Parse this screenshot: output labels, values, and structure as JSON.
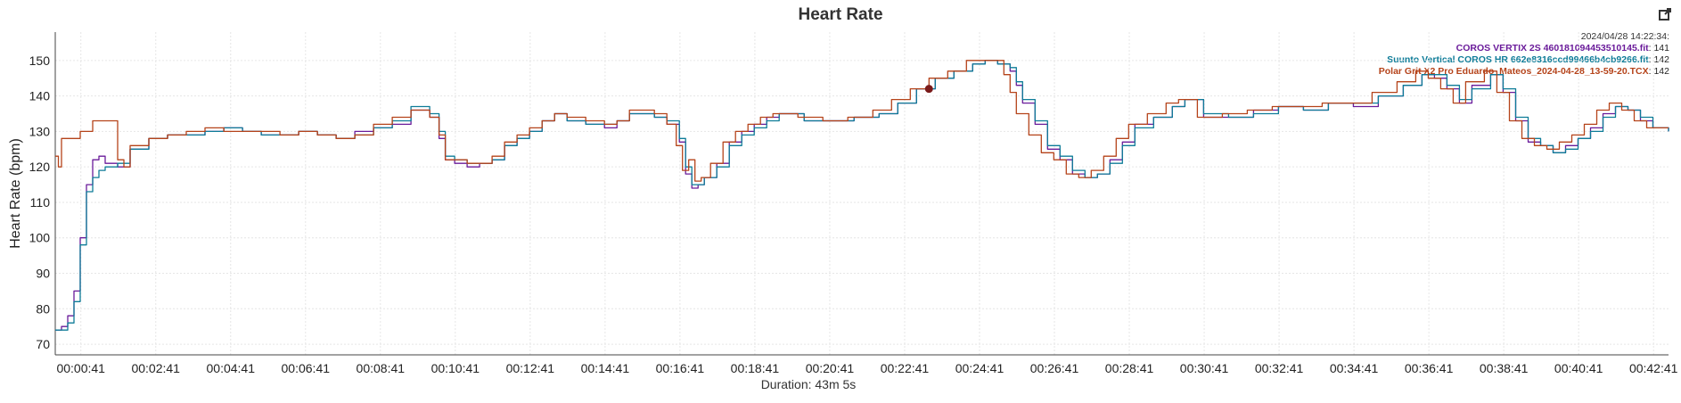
{
  "header": {
    "title": "Heart Rate",
    "export_icon": "external-link-icon"
  },
  "chart_data": {
    "type": "line",
    "title": "Heart Rate",
    "xlabel": "Duration: 43m 5s",
    "ylabel": "Heart Rate (bpm)",
    "xlim": [
      0,
      2585
    ],
    "ylim": [
      67,
      158
    ],
    "grid": true,
    "x_tick_labels": [
      "00:00:41",
      "00:02:41",
      "00:04:41",
      "00:06:41",
      "00:08:41",
      "00:10:41",
      "00:12:41",
      "00:14:41",
      "00:16:41",
      "00:18:41",
      "00:20:41",
      "00:22:41",
      "00:24:41",
      "00:26:41",
      "00:28:41",
      "00:30:41",
      "00:32:41",
      "00:34:41",
      "00:36:41",
      "00:38:41",
      "00:40:41",
      "00:42:41"
    ],
    "x_tick_values": [
      41,
      161,
      281,
      401,
      521,
      641,
      761,
      881,
      1001,
      1121,
      1241,
      1361,
      1481,
      1601,
      1721,
      1841,
      1961,
      2081,
      2201,
      2321,
      2441,
      2561
    ],
    "y_ticks": [
      70,
      80,
      90,
      100,
      110,
      120,
      130,
      140,
      150
    ],
    "legend_placement": "top-right",
    "tooltip": {
      "timestamp": "2024/04/28 14:22:34:",
      "entries": [
        {
          "name": "COROS VERTIX 2S 460181094453510145.fit",
          "value": "141",
          "color": "#6a1b9a"
        },
        {
          "name": "Suunto Vertical COROS HR 662e8316ccd99466b4cb9266.fit",
          "value": "142",
          "color": "#0e7c98"
        },
        {
          "name": "Polar Grit X2 Pro Eduardo_Mateos_2024-04-28_13-59-20.TCX",
          "value": "142",
          "color": "#b5431a"
        }
      ]
    },
    "marker": {
      "x": 1400,
      "y": 142
    },
    "series": [
      {
        "name": "COROS VERTIX 2S 460181094453510145.fit",
        "color": "#6a1b9a",
        "x": [
          0,
          10,
          20,
          30,
          40,
          50,
          60,
          70,
          80,
          100,
          120,
          150,
          180,
          210,
          240,
          270,
          300,
          330,
          360,
          390,
          420,
          450,
          480,
          510,
          540,
          570,
          600,
          615,
          625,
          640,
          660,
          680,
          700,
          720,
          740,
          760,
          780,
          800,
          820,
          850,
          880,
          900,
          920,
          940,
          960,
          980,
          1000,
          1010,
          1020,
          1030,
          1040,
          1060,
          1080,
          1100,
          1120,
          1140,
          1160,
          1200,
          1240,
          1280,
          1320,
          1350,
          1380,
          1410,
          1440,
          1470,
          1490,
          1510,
          1530,
          1540,
          1550,
          1570,
          1590,
          1610,
          1630,
          1650,
          1670,
          1690,
          1710,
          1730,
          1760,
          1790,
          1810,
          1840,
          1880,
          1920,
          1960,
          2000,
          2040,
          2080,
          2120,
          2160,
          2190,
          2210,
          2230,
          2250,
          2270,
          2300,
          2320,
          2340,
          2360,
          2380,
          2400,
          2420,
          2440,
          2460,
          2480,
          2500,
          2520,
          2540,
          2560,
          2585
        ],
        "y": [
          74,
          75,
          78,
          85,
          100,
          115,
          122,
          123,
          121,
          120,
          125,
          128,
          129,
          129,
          130,
          131,
          130,
          129,
          129,
          130,
          129,
          128,
          130,
          131,
          132,
          136,
          134,
          128,
          122,
          121,
          120,
          121,
          122,
          126,
          128,
          130,
          133,
          135,
          133,
          132,
          131,
          133,
          135,
          135,
          134,
          132,
          127,
          118,
          114,
          115,
          117,
          121,
          127,
          130,
          132,
          134,
          135,
          133,
          133,
          134,
          135,
          138,
          142,
          145,
          147,
          149,
          150,
          149,
          147,
          143,
          138,
          132,
          125,
          122,
          118,
          117,
          118,
          122,
          127,
          132,
          134,
          137,
          139,
          134,
          134,
          136,
          137,
          136,
          138,
          137,
          140,
          143,
          146,
          145,
          142,
          138,
          143,
          146,
          141,
          133,
          127,
          126,
          124,
          126,
          128,
          131,
          135,
          137,
          136,
          133,
          131,
          130
        ],
        "x_unit": "seconds"
      },
      {
        "name": "Suunto Vertical COROS HR 662e8316ccd99466b4cb9266.fit",
        "color": "#0e7c98",
        "x": [
          0,
          10,
          20,
          30,
          40,
          50,
          60,
          70,
          80,
          100,
          120,
          150,
          180,
          210,
          240,
          270,
          300,
          330,
          360,
          390,
          420,
          450,
          480,
          510,
          540,
          570,
          600,
          615,
          625,
          640,
          660,
          680,
          700,
          720,
          740,
          760,
          780,
          800,
          820,
          850,
          880,
          900,
          920,
          940,
          960,
          980,
          1000,
          1010,
          1020,
          1030,
          1040,
          1060,
          1080,
          1100,
          1120,
          1140,
          1160,
          1200,
          1240,
          1280,
          1320,
          1350,
          1380,
          1410,
          1440,
          1470,
          1490,
          1510,
          1530,
          1540,
          1550,
          1570,
          1590,
          1610,
          1630,
          1650,
          1670,
          1690,
          1710,
          1730,
          1760,
          1790,
          1810,
          1840,
          1880,
          1920,
          1960,
          2000,
          2040,
          2080,
          2120,
          2160,
          2190,
          2210,
          2230,
          2250,
          2270,
          2300,
          2320,
          2340,
          2360,
          2380,
          2400,
          2420,
          2440,
          2460,
          2480,
          2500,
          2520,
          2540,
          2560,
          2585
        ],
        "y": [
          74,
          74,
          76,
          82,
          98,
          113,
          117,
          119,
          120,
          121,
          125,
          128,
          129,
          129,
          130,
          131,
          130,
          129,
          129,
          130,
          129,
          128,
          129,
          131,
          133,
          137,
          135,
          130,
          123,
          122,
          121,
          121,
          122,
          126,
          128,
          130,
          133,
          135,
          133,
          132,
          132,
          133,
          135,
          135,
          134,
          133,
          128,
          120,
          115,
          115,
          117,
          120,
          126,
          129,
          131,
          133,
          135,
          133,
          133,
          134,
          135,
          138,
          142,
          145,
          147,
          149,
          150,
          149,
          148,
          144,
          139,
          133,
          126,
          123,
          119,
          117,
          118,
          121,
          126,
          131,
          134,
          137,
          139,
          135,
          134,
          135,
          137,
          136,
          138,
          138,
          140,
          143,
          146,
          146,
          143,
          139,
          142,
          146,
          142,
          134,
          128,
          126,
          124,
          125,
          128,
          130,
          134,
          137,
          136,
          134,
          131,
          130
        ],
        "x_unit": "seconds"
      },
      {
        "name": "Polar Grit X2 Pro Eduardo_Mateos_2024-04-28_13-59-20.TCX",
        "color": "#b5431a",
        "x": [
          0,
          5,
          10,
          20,
          40,
          60,
          80,
          95,
          100,
          110,
          120,
          150,
          180,
          210,
          240,
          270,
          300,
          330,
          360,
          390,
          420,
          450,
          480,
          510,
          540,
          570,
          600,
          615,
          625,
          640,
          660,
          680,
          700,
          720,
          740,
          760,
          780,
          800,
          820,
          850,
          880,
          900,
          920,
          940,
          960,
          980,
          995,
          1005,
          1015,
          1025,
          1035,
          1050,
          1070,
          1090,
          1110,
          1130,
          1150,
          1190,
          1230,
          1270,
          1310,
          1340,
          1370,
          1400,
          1430,
          1460,
          1480,
          1500,
          1520,
          1530,
          1540,
          1560,
          1580,
          1600,
          1620,
          1640,
          1660,
          1680,
          1700,
          1720,
          1750,
          1780,
          1800,
          1830,
          1870,
          1910,
          1950,
          1990,
          2030,
          2070,
          2110,
          2150,
          2180,
          2200,
          2220,
          2240,
          2260,
          2290,
          2310,
          2330,
          2350,
          2370,
          2390,
          2410,
          2430,
          2450,
          2470,
          2490,
          2510,
          2530,
          2550,
          2585
        ],
        "y": [
          123,
          120,
          128,
          128,
          130,
          133,
          133,
          133,
          122,
          120,
          126,
          128,
          129,
          130,
          131,
          130,
          130,
          130,
          129,
          130,
          129,
          128,
          129,
          132,
          134,
          136,
          134,
          129,
          122,
          122,
          121,
          121,
          123,
          127,
          129,
          131,
          133,
          135,
          134,
          133,
          132,
          133,
          136,
          136,
          135,
          132,
          126,
          119,
          122,
          116,
          117,
          121,
          127,
          130,
          132,
          134,
          135,
          134,
          133,
          134,
          136,
          139,
          142,
          145,
          147,
          150,
          150,
          150,
          146,
          141,
          135,
          129,
          124,
          122,
          118,
          117,
          119,
          123,
          128,
          132,
          135,
          138,
          139,
          134,
          135,
          136,
          137,
          137,
          138,
          138,
          141,
          144,
          147,
          145,
          142,
          138,
          144,
          147,
          141,
          133,
          128,
          126,
          125,
          127,
          129,
          132,
          136,
          138,
          136,
          133,
          131,
          131
        ],
        "x_unit": "seconds"
      }
    ]
  }
}
